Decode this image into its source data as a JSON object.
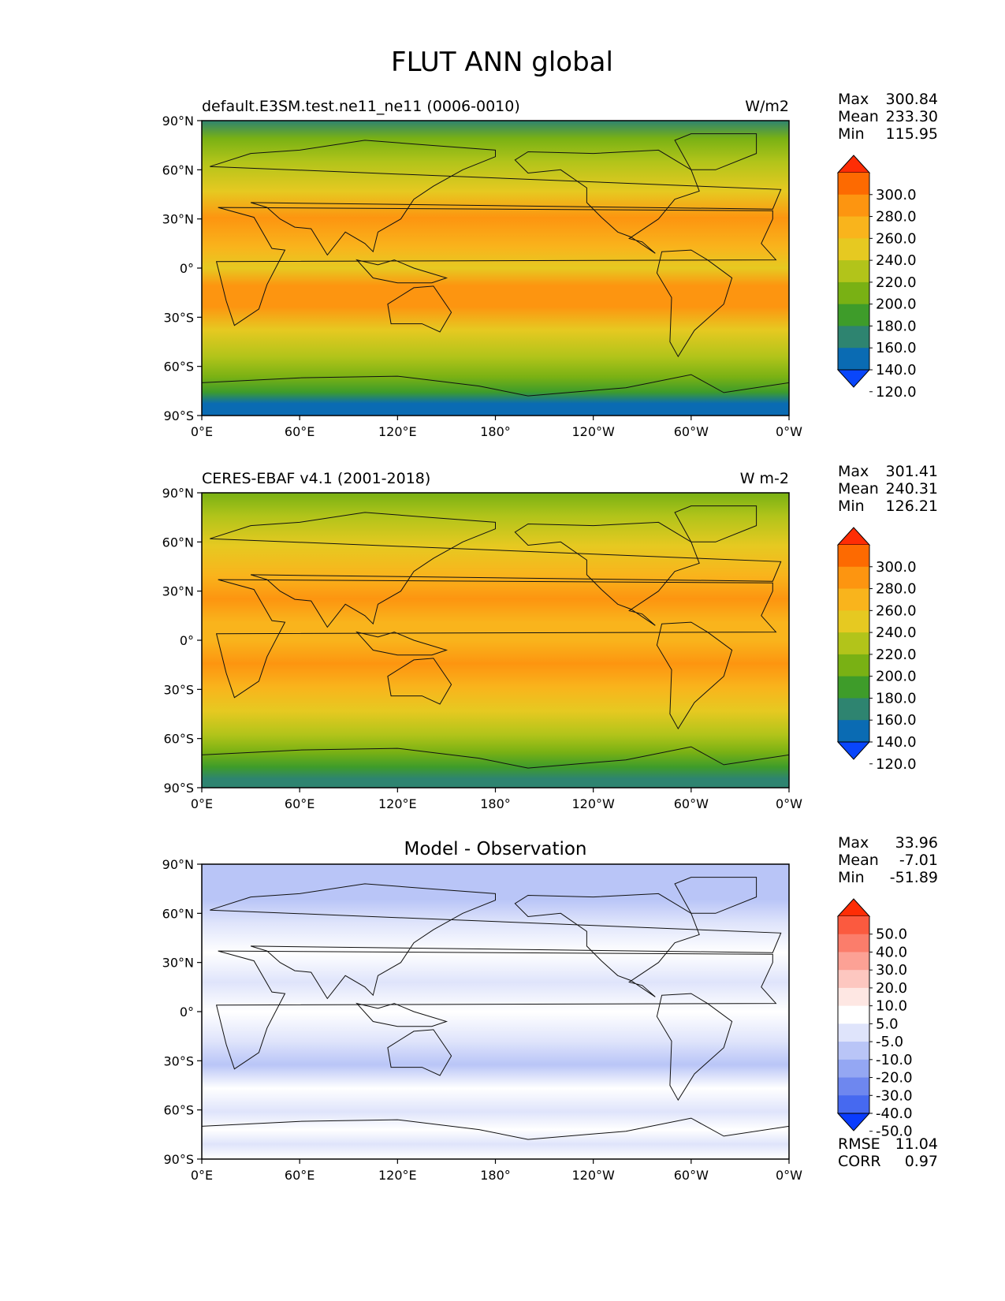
{
  "figure": {
    "title": "FLUT ANN global"
  },
  "panels": [
    {
      "id": "model",
      "title_left": "default.E3SM.test.ne11_ne11 (0006-0010)",
      "title_center": "",
      "units": "W/m2",
      "stats": [
        {
          "label": "Max",
          "value": "300.84"
        },
        {
          "label": "Mean",
          "value": "233.30"
        },
        {
          "label": "Min",
          "value": "115.95"
        }
      ],
      "colorbar": {
        "ticks": [
          "300.0",
          "280.0",
          "260.0",
          "240.0",
          "220.0",
          "200.0",
          "180.0",
          "160.0",
          "140.0",
          "120.0"
        ],
        "colors": [
          "#fe2d05",
          "#fd6a01",
          "#fd9510",
          "#f9b41c",
          "#e6c921",
          "#b2c41a",
          "#79b114",
          "#3e9c2a",
          "#2e8470",
          "#0a6bb3",
          "#0946fb"
        ]
      }
    },
    {
      "id": "obs",
      "title_left": "CERES-EBAF v4.1 (2001-2018)",
      "title_center": "",
      "units": "W m-2",
      "stats": [
        {
          "label": "Max",
          "value": "301.41"
        },
        {
          "label": "Mean",
          "value": "240.31"
        },
        {
          "label": "Min",
          "value": "126.21"
        }
      ],
      "colorbar": {
        "ticks": [
          "300.0",
          "280.0",
          "260.0",
          "240.0",
          "220.0",
          "200.0",
          "180.0",
          "160.0",
          "140.0",
          "120.0"
        ],
        "colors": [
          "#fe2d05",
          "#fd6a01",
          "#fd9510",
          "#f9b41c",
          "#e6c921",
          "#b2c41a",
          "#79b114",
          "#3e9c2a",
          "#2e8470",
          "#0a6bb3",
          "#0946fb"
        ]
      }
    },
    {
      "id": "diff",
      "title_left": "",
      "title_center": "Model - Observation",
      "units": "",
      "stats": [
        {
          "label": "Max",
          "value": "33.96"
        },
        {
          "label": "Mean",
          "value": "-7.01"
        },
        {
          "label": "Min",
          "value": "-51.89"
        }
      ],
      "colorbar": {
        "ticks": [
          "50.0",
          "40.0",
          "30.0",
          "20.0",
          "10.0",
          "5.0",
          "-5.0",
          "-10.0",
          "-20.0",
          "-30.0",
          "-40.0",
          "-50.0"
        ],
        "colors": [
          "#fe2d05",
          "#fb5a3f",
          "#fb7d6b",
          "#fca195",
          "#fdc7c0",
          "#fee7e3",
          "#ffffff",
          "#dfe4fb",
          "#b9c5f7",
          "#94a7f3",
          "#6e87ef",
          "#4669f0",
          "#0a3cfe"
        ]
      },
      "metrics": [
        {
          "label": "RMSE",
          "value": "11.04"
        },
        {
          "label": "CORR",
          "value": "0.97"
        }
      ]
    }
  ],
  "axes": {
    "x_ticks": [
      "0°E",
      "60°E",
      "120°E",
      "180°",
      "120°W",
      "60°W",
      "0°W"
    ],
    "y_ticks": [
      "90°N",
      "60°N",
      "30°N",
      "0°",
      "30°S",
      "60°S",
      "90°S"
    ],
    "x_range": [
      0,
      360
    ],
    "y_range": [
      -90,
      90
    ]
  },
  "chart_data": [
    {
      "type": "heatmap",
      "title": "default.E3SM.test.ne11_ne11 (0006-0010)",
      "units": "W/m2",
      "projection": "cylindrical equidistant",
      "x_range": [
        0,
        360
      ],
      "y_range": [
        -90,
        90
      ],
      "summary": {
        "max": 300.84,
        "mean": 233.3,
        "min": 115.95
      },
      "levels": [
        120,
        140,
        160,
        180,
        200,
        220,
        240,
        260,
        280,
        300
      ],
      "zonal_profile": {
        "lat": [
          -85,
          -75,
          -65,
          -55,
          -45,
          -35,
          -25,
          -15,
          -5,
          5,
          15,
          25,
          35,
          45,
          55,
          65,
          75,
          85
        ],
        "value": [
          135,
          160,
          180,
          195,
          215,
          235,
          255,
          260,
          245,
          235,
          255,
          250,
          235,
          215,
          195,
          190,
          185,
          180
        ]
      }
    },
    {
      "type": "heatmap",
      "title": "CERES-EBAF v4.1 (2001-2018)",
      "units": "W m-2",
      "projection": "cylindrical equidistant",
      "x_range": [
        0,
        360
      ],
      "y_range": [
        -90,
        90
      ],
      "summary": {
        "max": 301.41,
        "mean": 240.31,
        "min": 126.21
      },
      "levels": [
        120,
        140,
        160,
        180,
        200,
        220,
        240,
        260,
        280,
        300
      ],
      "zonal_profile": {
        "lat": [
          -85,
          -75,
          -65,
          -55,
          -45,
          -35,
          -25,
          -15,
          -5,
          5,
          15,
          25,
          35,
          45,
          55,
          65,
          75,
          85
        ],
        "value": [
          145,
          165,
          190,
          205,
          225,
          245,
          260,
          265,
          250,
          240,
          260,
          255,
          240,
          220,
          200,
          195,
          190,
          185
        ]
      }
    },
    {
      "type": "heatmap",
      "title": "Model - Observation",
      "units": "",
      "projection": "cylindrical equidistant",
      "x_range": [
        0,
        360
      ],
      "y_range": [
        -90,
        90
      ],
      "summary": {
        "max": 33.96,
        "mean": -7.01,
        "min": -51.89,
        "rmse": 11.04,
        "corr": 0.97
      },
      "levels": [
        -50,
        -40,
        -30,
        -20,
        -10,
        -5,
        5,
        10,
        20,
        30,
        40,
        50
      ],
      "zonal_profile": {
        "lat": [
          -85,
          -75,
          -65,
          -55,
          -45,
          -35,
          -25,
          -15,
          -5,
          5,
          15,
          25,
          35,
          45,
          55,
          65,
          75,
          85
        ],
        "value": [
          -8,
          -6,
          -10,
          -10,
          -12,
          -10,
          -5,
          -5,
          -5,
          -5,
          -5,
          -5,
          -5,
          -5,
          -5,
          -5,
          -5,
          -5
        ]
      }
    }
  ]
}
